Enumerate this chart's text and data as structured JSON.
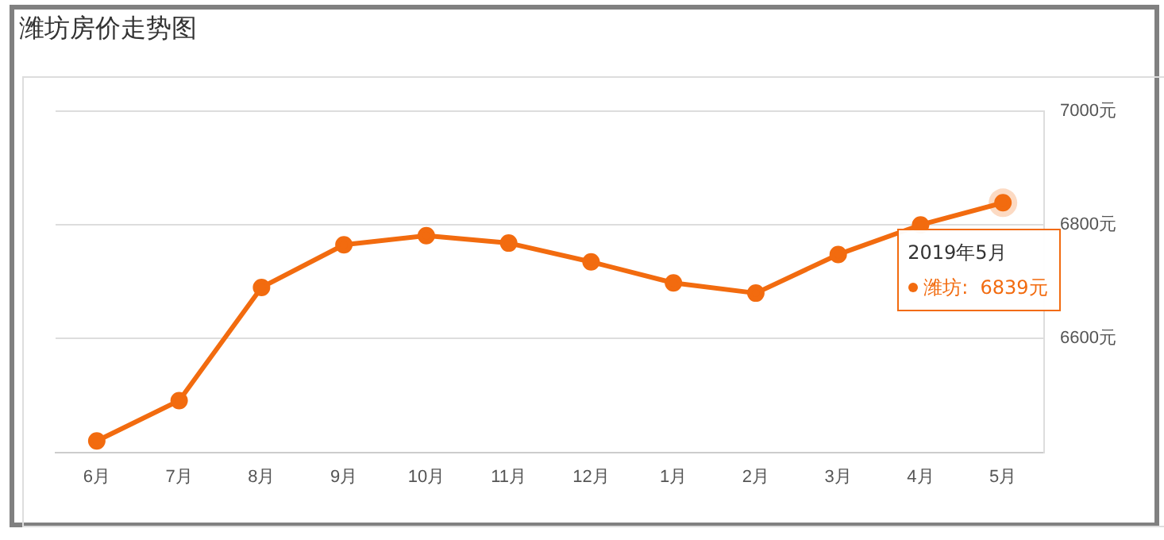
{
  "chart_data": {
    "type": "line",
    "title": "潍坊房价走势图",
    "categories": [
      "6月",
      "7月",
      "8月",
      "9月",
      "10月",
      "11月",
      "12月",
      "1月",
      "2月",
      "3月",
      "4月",
      "5月"
    ],
    "series": [
      {
        "color": "#f26b0f",
        "values": [
          6420,
          6491,
          6690,
          6765,
          6781,
          6768,
          6735,
          6698,
          6680,
          6748,
          6800,
          6839
        ]
      }
    ],
    "annotations": [
      "2019年5月",
      "潍坊:  6839元"
    ],
    "ylim": [
      6400,
      7000
    ],
    "yticks": [
      {
        "value": 6400,
        "label": null
      },
      {
        "value": 6600,
        "label": "6600元"
      },
      {
        "value": 6800,
        "label": "6800元"
      },
      {
        "value": 7000,
        "label": "7000元"
      }
    ],
    "grid": "y",
    "marker": "circle",
    "line_style": "solid",
    "legend": false
  }
}
